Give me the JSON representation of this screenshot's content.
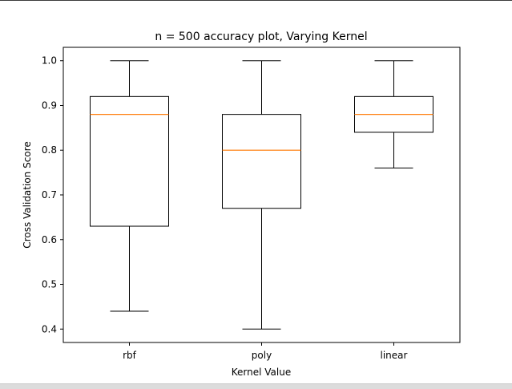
{
  "chart_data": {
    "type": "box",
    "title": "n = 500 accuracy plot, Varying Kernel",
    "xlabel": "Kernel Value",
    "ylabel": "Cross Validation Score",
    "ylim": [
      0.37,
      1.03
    ],
    "yticks": [
      0.4,
      0.5,
      0.6,
      0.7,
      0.8,
      0.9,
      1.0
    ],
    "ytick_labels": [
      "0.4",
      "0.5",
      "0.6",
      "0.7",
      "0.8",
      "0.9",
      "1.0"
    ],
    "grid": false,
    "colors": {
      "box": "#000000",
      "median": "#ff7f0e"
    },
    "boxes": [
      {
        "category": "rbf",
        "whisker_low": 0.44,
        "q1": 0.63,
        "median": 0.88,
        "q3": 0.92,
        "whisker_high": 1.0
      },
      {
        "category": "poly",
        "whisker_low": 0.4,
        "q1": 0.67,
        "median": 0.8,
        "q3": 0.88,
        "whisker_high": 1.0
      },
      {
        "category": "linear",
        "whisker_low": 0.76,
        "q1": 0.84,
        "median": 0.88,
        "q3": 0.92,
        "whisker_high": 1.0
      }
    ]
  }
}
